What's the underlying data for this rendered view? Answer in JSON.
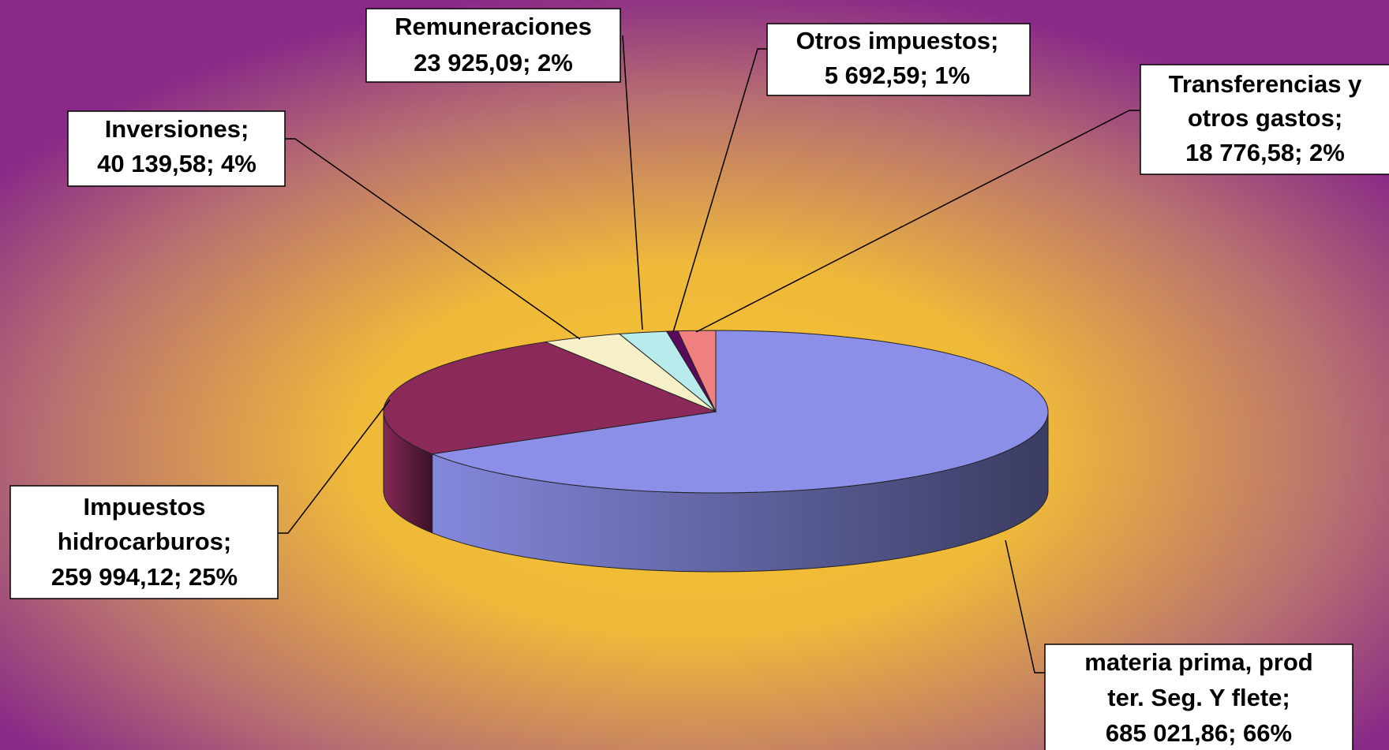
{
  "chart_data": {
    "type": "pie3d",
    "categories": [
      [
        "materia prima,  prod",
        "ter. Seg. Y flete;"
      ],
      [
        "Impuestos",
        "hidrocarburos;"
      ],
      [
        "Inversiones;"
      ],
      [
        "Remuneraciones"
      ],
      [
        "Otros impuestos;"
      ],
      [
        "Transferencias y",
        "otros gastos;"
      ]
    ],
    "values": [
      685021.86,
      259994.12,
      40139.58,
      23925.09,
      5692.59,
      18776.58
    ],
    "value_labels": [
      "685 021,86; 66%",
      "259 994,12; 25%",
      "40 139,58; 4%",
      "23 925,09; 2%",
      "5 692,59; 1%",
      "18 776,58; 2%"
    ],
    "colors": [
      "#8b8fe8",
      "#8b2a5a",
      "#f5f0c8",
      "#b8ecec",
      "#5a0a5a",
      "#f08080"
    ]
  }
}
